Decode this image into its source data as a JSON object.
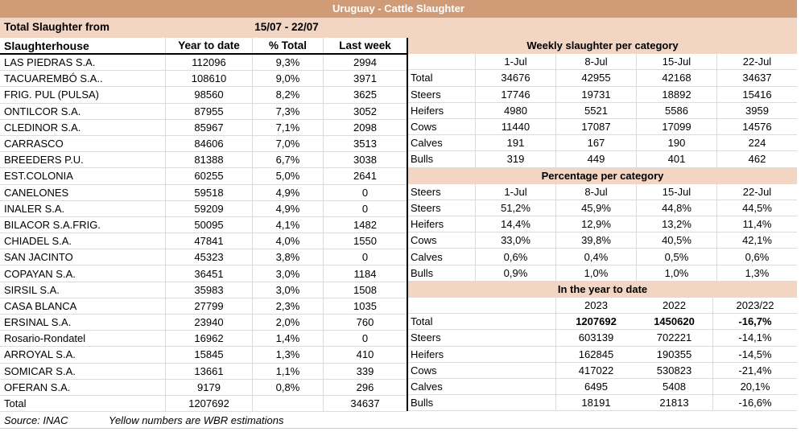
{
  "title": "Uruguay - Cattle Slaughter",
  "period": {
    "label": "Total Slaughter from",
    "range": "15/07 - 22/07"
  },
  "left_table": {
    "headers": [
      "Slaughterhouse",
      "Year to date",
      "% Total",
      "Last week"
    ],
    "rows": [
      [
        "LAS PIEDRAS S.A.",
        "112096",
        "9,3%",
        "2994"
      ],
      [
        "TACUAREMBÓ S.A..",
        "108610",
        "9,0%",
        "3971"
      ],
      [
        "FRIG. PUL (PULSA)",
        "98560",
        "8,2%",
        "3625"
      ],
      [
        "ONTILCOR S.A.",
        "87955",
        "7,3%",
        "3052"
      ],
      [
        "CLEDINOR S.A.",
        "85967",
        "7,1%",
        "2098"
      ],
      [
        "CARRASCO",
        "84606",
        "7,0%",
        "3513"
      ],
      [
        "BREEDERS P.U.",
        "81388",
        "6,7%",
        "3038"
      ],
      [
        "EST.COLONIA",
        "60255",
        "5,0%",
        "2641"
      ],
      [
        "CANELONES",
        "59518",
        "4,9%",
        "0"
      ],
      [
        "INALER S.A.",
        "59209",
        "4,9%",
        "0"
      ],
      [
        "BILACOR S.A.FRIG.",
        "50095",
        "4,1%",
        "1482"
      ],
      [
        "CHIADEL S.A.",
        "47841",
        "4,0%",
        "1550"
      ],
      [
        "SAN JACINTO",
        "45323",
        "3,8%",
        "0"
      ],
      [
        "COPAYAN S.A.",
        "36451",
        "3,0%",
        "1184"
      ],
      [
        "SIRSIL S.A.",
        "35983",
        "3,0%",
        "1508"
      ],
      [
        "CASA BLANCA",
        "27799",
        "2,3%",
        "1035"
      ],
      [
        "ERSINAL S.A.",
        "23940",
        "2,0%",
        "760"
      ],
      [
        "Rosario-Rondatel",
        "16962",
        "1,4%",
        "0"
      ],
      [
        "ARROYAL S.A.",
        "15845",
        "1,3%",
        "410"
      ],
      [
        "SOMICAR S.A.",
        "13661",
        "1,1%",
        "339"
      ],
      [
        "OFERAN S.A.",
        "9179",
        "0,8%",
        "296"
      ],
      [
        "Total",
        "1207692",
        "",
        "34637"
      ]
    ]
  },
  "footer": {
    "source": "Source: INAC",
    "note": "Yellow numbers are WBR estimations"
  },
  "right_sections": {
    "weekly": {
      "title": "Weekly slaughter per category",
      "columns": [
        "",
        "1-Jul",
        "8-Jul",
        "15-Jul",
        "22-Jul"
      ],
      "rows": [
        [
          "Total",
          "34676",
          "42955",
          "42168",
          "34637"
        ],
        [
          "Steers",
          "17746",
          "19731",
          "18892",
          "15416"
        ],
        [
          "Heifers",
          "4980",
          "5521",
          "5586",
          "3959"
        ],
        [
          "Cows",
          "11440",
          "17087",
          "17099",
          "14576"
        ],
        [
          "Calves",
          "191",
          "167",
          "190",
          "224"
        ],
        [
          "Bulls",
          "319",
          "449",
          "401",
          "462"
        ]
      ]
    },
    "percentage": {
      "title": "Percentage per category",
      "columns": [
        "Steers",
        "1-Jul",
        "8-Jul",
        "15-Jul",
        "22-Jul"
      ],
      "rows": [
        [
          "Steers",
          "51,2%",
          "45,9%",
          "44,8%",
          "44,5%"
        ],
        [
          "Heifers",
          "14,4%",
          "12,9%",
          "13,2%",
          "11,4%"
        ],
        [
          "Cows",
          "33,0%",
          "39,8%",
          "40,5%",
          "42,1%"
        ],
        [
          "Calves",
          "0,6%",
          "0,4%",
          "0,5%",
          "0,6%"
        ],
        [
          "Bulls",
          "0,9%",
          "1,0%",
          "1,0%",
          "1,3%"
        ]
      ]
    },
    "year_to_date": {
      "title": "In the year to date",
      "columns": [
        "",
        "2023",
        "2022",
        "2023/22"
      ],
      "rows": [
        [
          "Total",
          "1207692",
          "1450620",
          "-16,7%"
        ],
        [
          "Steers",
          "603139",
          "702221",
          "-14,1%"
        ],
        [
          "Heifers",
          "162845",
          "190355",
          "-14,5%"
        ],
        [
          "Cows",
          "417022",
          "530823",
          "-21,4%"
        ],
        [
          "Calves",
          "6495",
          "5408",
          "20,1%"
        ],
        [
          "Bulls",
          "18191",
          "21813",
          "-16,6%"
        ]
      ],
      "bold_row_index": 0
    }
  },
  "colors": {
    "title_bar_bg": "#d09b77",
    "band_bg": "#f2d5c3",
    "grid_line": "#dcdcdc",
    "divider": "#000000",
    "title_text": "#ffffff",
    "body_text": "#000000"
  }
}
